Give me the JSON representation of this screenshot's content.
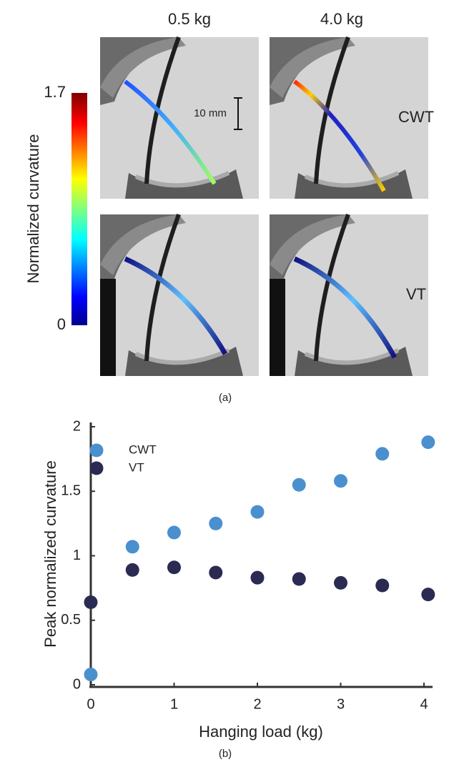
{
  "panel_a": {
    "columns": [
      "0.5 kg",
      "4.0 kg"
    ],
    "rows": [
      "CWT",
      "VT"
    ],
    "colorbar": {
      "label": "Normalized curvature",
      "lim": [
        0,
        1.7
      ],
      "ticks": [
        0,
        1.7
      ]
    },
    "scale_bar": "10 mm",
    "caption": "(a)"
  },
  "chart_data": {
    "type": "scatter",
    "ylabel": "Peak normalized curvature",
    "xlabel": "Hanging load (kg)",
    "series": [
      {
        "name": "CWT",
        "color": "#4a90cf",
        "x": [
          0,
          0.5,
          1,
          1.5,
          2,
          2.5,
          3,
          3.5,
          4.05
        ],
        "values": [
          0.08,
          1.07,
          1.18,
          1.25,
          1.34,
          1.55,
          1.58,
          1.79,
          1.88
        ]
      },
      {
        "name": "VT",
        "color": "#2b2a52",
        "x": [
          0,
          0.5,
          1,
          1.5,
          2,
          2.5,
          3,
          3.5,
          4.05
        ],
        "values": [
          0.64,
          0.89,
          0.91,
          0.87,
          0.83,
          0.82,
          0.79,
          0.77,
          0.7
        ]
      }
    ],
    "xlim": [
      0,
      4.1
    ],
    "xticks": [
      0,
      1,
      2,
      3,
      4
    ],
    "ylim": [
      0,
      2
    ],
    "yticks": [
      0,
      0.5,
      1,
      1.5,
      2
    ],
    "legend": "upper left",
    "grid": false
  },
  "caption_b": "(b)"
}
